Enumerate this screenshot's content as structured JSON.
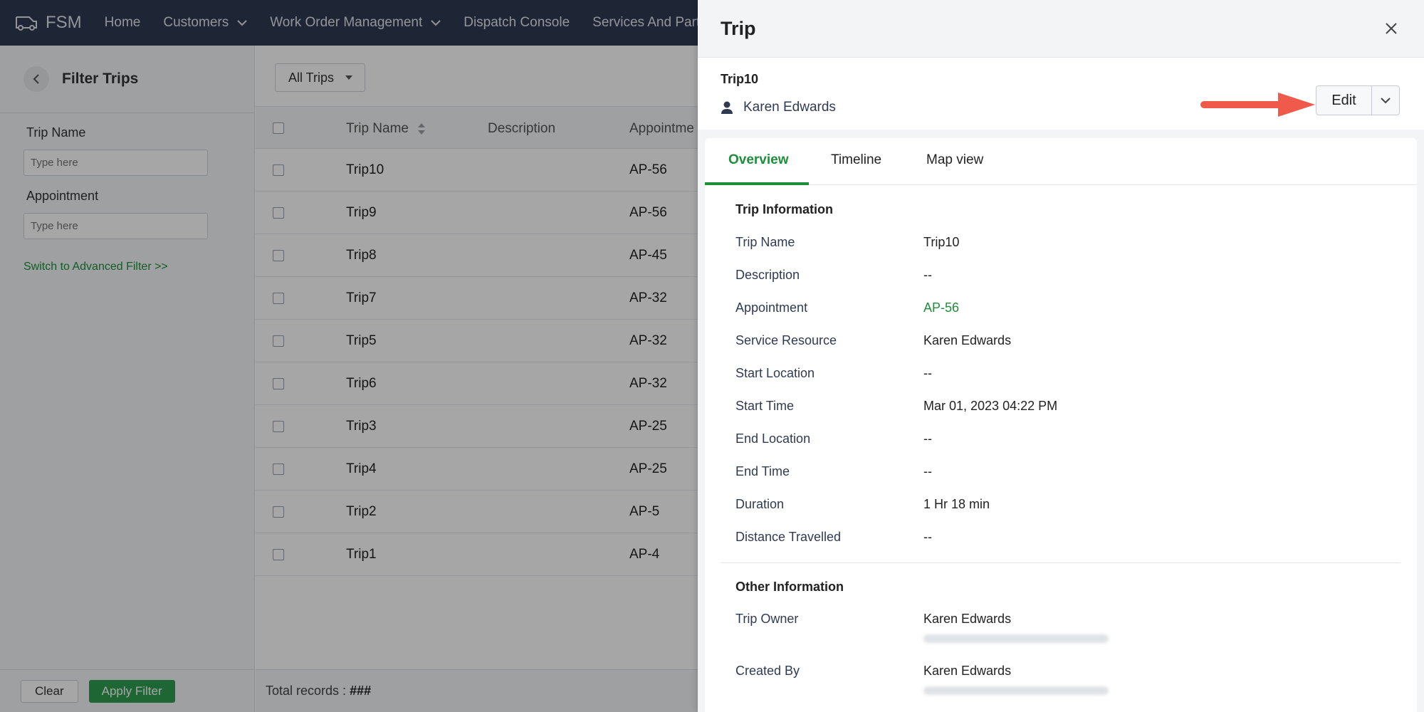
{
  "app": {
    "brand": "FSM",
    "nav": [
      {
        "label": "Home",
        "has_dropdown": false
      },
      {
        "label": "Customers",
        "has_dropdown": true
      },
      {
        "label": "Work Order Management",
        "has_dropdown": true
      },
      {
        "label": "Dispatch Console",
        "has_dropdown": false
      },
      {
        "label": "Services And Parts",
        "has_dropdown": false
      }
    ]
  },
  "filter": {
    "title": "Filter Trips",
    "fields": [
      {
        "label": "Trip Name",
        "placeholder": "Type here"
      },
      {
        "label": "Appointment",
        "placeholder": "Type here"
      }
    ],
    "advanced_link": "Switch to Advanced Filter >>",
    "clear_label": "Clear",
    "apply_label": "Apply Filter"
  },
  "list": {
    "view_selector": "All Trips",
    "columns": [
      "Trip Name",
      "Description",
      "Appointme"
    ],
    "rows": [
      {
        "name": "Trip10",
        "appointment": "AP-56"
      },
      {
        "name": "Trip9",
        "appointment": "AP-56"
      },
      {
        "name": "Trip8",
        "appointment": "AP-45"
      },
      {
        "name": "Trip7",
        "appointment": "AP-32"
      },
      {
        "name": "Trip5",
        "appointment": "AP-32"
      },
      {
        "name": "Trip6",
        "appointment": "AP-32"
      },
      {
        "name": "Trip3",
        "appointment": "AP-25"
      },
      {
        "name": "Trip4",
        "appointment": "AP-25"
      },
      {
        "name": "Trip2",
        "appointment": "AP-5"
      },
      {
        "name": "Trip1",
        "appointment": "AP-4"
      }
    ],
    "total_label": "Total records :",
    "total_value": "###"
  },
  "drawer": {
    "title": "Trip",
    "record_name": "Trip10",
    "owner": "Karen Edwards",
    "edit_label": "Edit",
    "tabs": [
      "Overview",
      "Timeline",
      "Map view"
    ],
    "active_tab": "Overview",
    "trip_information": {
      "title": "Trip Information",
      "fields": [
        {
          "label": "Trip Name",
          "value": "Trip10",
          "link": false
        },
        {
          "label": "Description",
          "value": "--",
          "link": false
        },
        {
          "label": "Appointment",
          "value": "AP-56",
          "link": true
        },
        {
          "label": "Service Resource",
          "value": "Karen Edwards",
          "link": false
        },
        {
          "label": "Start Location",
          "value": "--",
          "link": false
        },
        {
          "label": "Start Time",
          "value": "Mar 01, 2023 04:22 PM",
          "link": false
        },
        {
          "label": "End Location",
          "value": "--",
          "link": false
        },
        {
          "label": "End Time",
          "value": "--",
          "link": false
        },
        {
          "label": "Duration",
          "value": "1 Hr 18 min",
          "link": false
        },
        {
          "label": "Distance Travelled",
          "value": "--",
          "link": false
        }
      ]
    },
    "other_information": {
      "title": "Other Information",
      "fields": [
        {
          "label": "Trip Owner",
          "value": "Karen Edwards"
        },
        {
          "label": "Created By",
          "value": "Karen Edwards"
        }
      ]
    }
  },
  "colors": {
    "nav_bg": "#2f3b52",
    "accent_green": "#1d8f3b",
    "annotation_arrow": "#f05a4a"
  }
}
